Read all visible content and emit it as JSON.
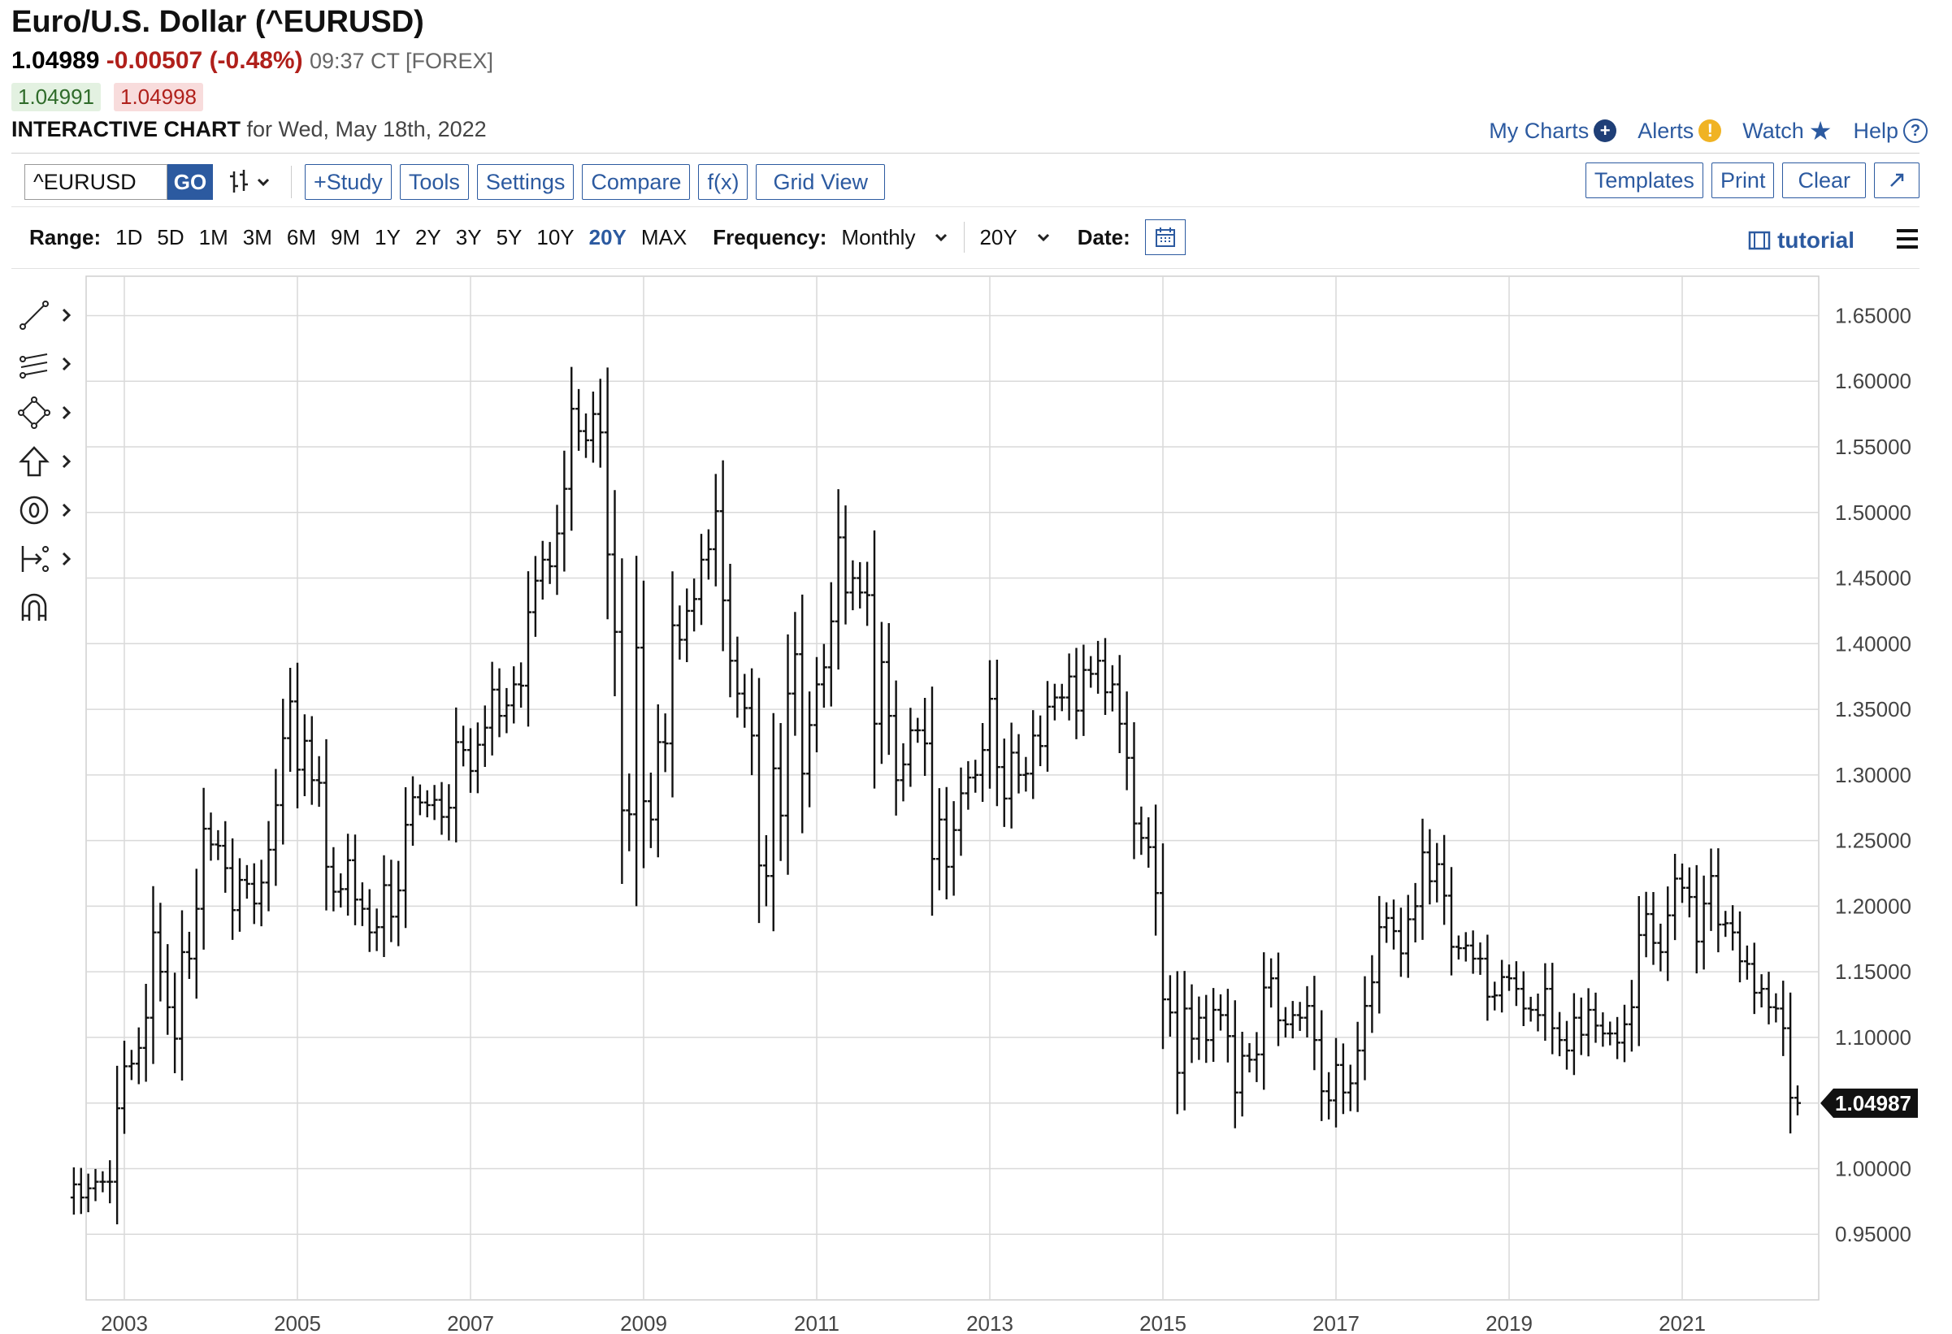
{
  "header": {
    "title": "Euro/U.S. Dollar (^EURUSD)",
    "last": "1.04989",
    "change": "-0.00507 (-0.48%)",
    "time": "09:37 CT [FOREX]",
    "bid": "1.04991",
    "ask": "1.04998",
    "chart_label": "INTERACTIVE CHART",
    "chart_date": "for Wed, May 18th, 2022"
  },
  "top_links": {
    "my_charts": "My Charts",
    "alerts": "Alerts",
    "watch": "Watch",
    "help": "Help"
  },
  "toolbar": {
    "symbol_value": "^EURUSD",
    "go": "GO",
    "study": "+Study",
    "tools": "Tools",
    "settings": "Settings",
    "compare": "Compare",
    "fx": "f(x)",
    "grid_view": "Grid View",
    "templates": "Templates",
    "print": "Print",
    "clear": "Clear"
  },
  "rangebar": {
    "range_label": "Range:",
    "ranges": [
      "1D",
      "5D",
      "1M",
      "3M",
      "6M",
      "9M",
      "1Y",
      "2Y",
      "3Y",
      "5Y",
      "10Y",
      "20Y",
      "MAX"
    ],
    "selected_range": "20Y",
    "frequency_label": "Frequency:",
    "frequency_value": "Monthly",
    "period_value": "20Y",
    "date_label": "Date:",
    "tutorial": "tutorial"
  },
  "colors": {
    "accent": "#2c5aa0",
    "negative": "#b0201b",
    "bar": "#111111",
    "grid": "#d9d9d9"
  },
  "chart_data": {
    "type": "ohlc",
    "frequency": "monthly",
    "current_price_label": "1.04987",
    "x_tick_labels": [
      "2003",
      "2005",
      "2007",
      "2009",
      "2011",
      "2013",
      "2015",
      "2017",
      "2019",
      "2021"
    ],
    "y_tick_labels": [
      "0.95000",
      "1.00000",
      "1.05000",
      "1.10000",
      "1.15000",
      "1.20000",
      "1.25000",
      "1.30000",
      "1.35000",
      "1.40000",
      "1.45000",
      "1.50000",
      "1.55000",
      "1.60000",
      "1.65000"
    ],
    "ylim": [
      0.9,
      1.68
    ],
    "xlim": [
      "2002-06",
      "2022-08"
    ],
    "grid": true,
    "monthly_closes": [
      {
        "date": "2002-06",
        "close": 0.988
      },
      {
        "date": "2002-07",
        "close": 0.978
      },
      {
        "date": "2002-08",
        "close": 0.985
      },
      {
        "date": "2002-09",
        "close": 0.99
      },
      {
        "date": "2002-10",
        "close": 0.99
      },
      {
        "date": "2002-11",
        "close": 0.99
      },
      {
        "date": "2002-12",
        "close": 1.046
      },
      {
        "date": "2003-01",
        "close": 1.078
      },
      {
        "date": "2003-02",
        "close": 1.08
      },
      {
        "date": "2003-03",
        "close": 1.092
      },
      {
        "date": "2003-04",
        "close": 1.115
      },
      {
        "date": "2003-05",
        "close": 1.18
      },
      {
        "date": "2003-06",
        "close": 1.15
      },
      {
        "date": "2003-07",
        "close": 1.123
      },
      {
        "date": "2003-08",
        "close": 1.099
      },
      {
        "date": "2003-09",
        "close": 1.165
      },
      {
        "date": "2003-10",
        "close": 1.16
      },
      {
        "date": "2003-11",
        "close": 1.198
      },
      {
        "date": "2003-12",
        "close": 1.259
      },
      {
        "date": "2004-01",
        "close": 1.247
      },
      {
        "date": "2004-02",
        "close": 1.246
      },
      {
        "date": "2004-03",
        "close": 1.229
      },
      {
        "date": "2004-04",
        "close": 1.197
      },
      {
        "date": "2004-05",
        "close": 1.22
      },
      {
        "date": "2004-06",
        "close": 1.217
      },
      {
        "date": "2004-07",
        "close": 1.202
      },
      {
        "date": "2004-08",
        "close": 1.218
      },
      {
        "date": "2004-09",
        "close": 1.243
      },
      {
        "date": "2004-10",
        "close": 1.277
      },
      {
        "date": "2004-11",
        "close": 1.328
      },
      {
        "date": "2004-12",
        "close": 1.356
      },
      {
        "date": "2005-01",
        "close": 1.304
      },
      {
        "date": "2005-02",
        "close": 1.326
      },
      {
        "date": "2005-03",
        "close": 1.296
      },
      {
        "date": "2005-04",
        "close": 1.294
      },
      {
        "date": "2005-05",
        "close": 1.23
      },
      {
        "date": "2005-06",
        "close": 1.211
      },
      {
        "date": "2005-07",
        "close": 1.213
      },
      {
        "date": "2005-08",
        "close": 1.235
      },
      {
        "date": "2005-09",
        "close": 1.205
      },
      {
        "date": "2005-10",
        "close": 1.198
      },
      {
        "date": "2005-11",
        "close": 1.18
      },
      {
        "date": "2005-12",
        "close": 1.184
      },
      {
        "date": "2006-01",
        "close": 1.216
      },
      {
        "date": "2006-02",
        "close": 1.192
      },
      {
        "date": "2006-03",
        "close": 1.212
      },
      {
        "date": "2006-04",
        "close": 1.262
      },
      {
        "date": "2006-05",
        "close": 1.283
      },
      {
        "date": "2006-06",
        "close": 1.279
      },
      {
        "date": "2006-07",
        "close": 1.277
      },
      {
        "date": "2006-08",
        "close": 1.281
      },
      {
        "date": "2006-09",
        "close": 1.268
      },
      {
        "date": "2006-10",
        "close": 1.275
      },
      {
        "date": "2006-11",
        "close": 1.325
      },
      {
        "date": "2006-12",
        "close": 1.319
      },
      {
        "date": "2007-01",
        "close": 1.303
      },
      {
        "date": "2007-02",
        "close": 1.323
      },
      {
        "date": "2007-03",
        "close": 1.336
      },
      {
        "date": "2007-04",
        "close": 1.365
      },
      {
        "date": "2007-05",
        "close": 1.345
      },
      {
        "date": "2007-06",
        "close": 1.353
      },
      {
        "date": "2007-07",
        "close": 1.369
      },
      {
        "date": "2007-08",
        "close": 1.368
      },
      {
        "date": "2007-09",
        "close": 1.424
      },
      {
        "date": "2007-10",
        "close": 1.448
      },
      {
        "date": "2007-11",
        "close": 1.464
      },
      {
        "date": "2007-12",
        "close": 1.459
      },
      {
        "date": "2008-01",
        "close": 1.484
      },
      {
        "date": "2008-02",
        "close": 1.518
      },
      {
        "date": "2008-03",
        "close": 1.579
      },
      {
        "date": "2008-04",
        "close": 1.562
      },
      {
        "date": "2008-05",
        "close": 1.555
      },
      {
        "date": "2008-06",
        "close": 1.575
      },
      {
        "date": "2008-07",
        "close": 1.561
      },
      {
        "date": "2008-08",
        "close": 1.468
      },
      {
        "date": "2008-09",
        "close": 1.409
      },
      {
        "date": "2008-10",
        "close": 1.273
      },
      {
        "date": "2008-11",
        "close": 1.27
      },
      {
        "date": "2008-12",
        "close": 1.397
      },
      {
        "date": "2009-01",
        "close": 1.28
      },
      {
        "date": "2009-02",
        "close": 1.266
      },
      {
        "date": "2009-03",
        "close": 1.325
      },
      {
        "date": "2009-04",
        "close": 1.324
      },
      {
        "date": "2009-05",
        "close": 1.414
      },
      {
        "date": "2009-06",
        "close": 1.403
      },
      {
        "date": "2009-07",
        "close": 1.425
      },
      {
        "date": "2009-08",
        "close": 1.434
      },
      {
        "date": "2009-09",
        "close": 1.464
      },
      {
        "date": "2009-10",
        "close": 1.472
      },
      {
        "date": "2009-11",
        "close": 1.501
      },
      {
        "date": "2009-12",
        "close": 1.433
      },
      {
        "date": "2010-01",
        "close": 1.387
      },
      {
        "date": "2010-02",
        "close": 1.362
      },
      {
        "date": "2010-03",
        "close": 1.351
      },
      {
        "date": "2010-04",
        "close": 1.33
      },
      {
        "date": "2010-05",
        "close": 1.231
      },
      {
        "date": "2010-06",
        "close": 1.223
      },
      {
        "date": "2010-07",
        "close": 1.305
      },
      {
        "date": "2010-08",
        "close": 1.269
      },
      {
        "date": "2010-09",
        "close": 1.362
      },
      {
        "date": "2010-10",
        "close": 1.392
      },
      {
        "date": "2010-11",
        "close": 1.301
      },
      {
        "date": "2010-12",
        "close": 1.338
      },
      {
        "date": "2011-01",
        "close": 1.369
      },
      {
        "date": "2011-02",
        "close": 1.382
      },
      {
        "date": "2011-03",
        "close": 1.417
      },
      {
        "date": "2011-04",
        "close": 1.481
      },
      {
        "date": "2011-05",
        "close": 1.439
      },
      {
        "date": "2011-06",
        "close": 1.45
      },
      {
        "date": "2011-07",
        "close": 1.439
      },
      {
        "date": "2011-08",
        "close": 1.437
      },
      {
        "date": "2011-09",
        "close": 1.339
      },
      {
        "date": "2011-10",
        "close": 1.386
      },
      {
        "date": "2011-11",
        "close": 1.345
      },
      {
        "date": "2011-12",
        "close": 1.296
      },
      {
        "date": "2012-01",
        "close": 1.308
      },
      {
        "date": "2012-02",
        "close": 1.334
      },
      {
        "date": "2012-03",
        "close": 1.334
      },
      {
        "date": "2012-04",
        "close": 1.324
      },
      {
        "date": "2012-05",
        "close": 1.236
      },
      {
        "date": "2012-06",
        "close": 1.266
      },
      {
        "date": "2012-07",
        "close": 1.23
      },
      {
        "date": "2012-08",
        "close": 1.258
      },
      {
        "date": "2012-09",
        "close": 1.286
      },
      {
        "date": "2012-10",
        "close": 1.298
      },
      {
        "date": "2012-11",
        "close": 1.3
      },
      {
        "date": "2012-12",
        "close": 1.319
      },
      {
        "date": "2013-01",
        "close": 1.358
      },
      {
        "date": "2013-02",
        "close": 1.306
      },
      {
        "date": "2013-03",
        "close": 1.282
      },
      {
        "date": "2013-04",
        "close": 1.317
      },
      {
        "date": "2013-05",
        "close": 1.3
      },
      {
        "date": "2013-06",
        "close": 1.301
      },
      {
        "date": "2013-07",
        "close": 1.33
      },
      {
        "date": "2013-08",
        "close": 1.322
      },
      {
        "date": "2013-09",
        "close": 1.352
      },
      {
        "date": "2013-10",
        "close": 1.359
      },
      {
        "date": "2013-11",
        "close": 1.359
      },
      {
        "date": "2013-12",
        "close": 1.375
      },
      {
        "date": "2014-01",
        "close": 1.349
      },
      {
        "date": "2014-02",
        "close": 1.38
      },
      {
        "date": "2014-03",
        "close": 1.377
      },
      {
        "date": "2014-04",
        "close": 1.387
      },
      {
        "date": "2014-05",
        "close": 1.363
      },
      {
        "date": "2014-06",
        "close": 1.369
      },
      {
        "date": "2014-07",
        "close": 1.339
      },
      {
        "date": "2014-08",
        "close": 1.313
      },
      {
        "date": "2014-09",
        "close": 1.263
      },
      {
        "date": "2014-10",
        "close": 1.252
      },
      {
        "date": "2014-11",
        "close": 1.245
      },
      {
        "date": "2014-12",
        "close": 1.21
      },
      {
        "date": "2015-01",
        "close": 1.129
      },
      {
        "date": "2015-02",
        "close": 1.119
      },
      {
        "date": "2015-03",
        "close": 1.073
      },
      {
        "date": "2015-04",
        "close": 1.122
      },
      {
        "date": "2015-05",
        "close": 1.099
      },
      {
        "date": "2015-06",
        "close": 1.115
      },
      {
        "date": "2015-07",
        "close": 1.098
      },
      {
        "date": "2015-08",
        "close": 1.121
      },
      {
        "date": "2015-09",
        "close": 1.117
      },
      {
        "date": "2015-10",
        "close": 1.101
      },
      {
        "date": "2015-11",
        "close": 1.058
      },
      {
        "date": "2015-12",
        "close": 1.086
      },
      {
        "date": "2016-01",
        "close": 1.083
      },
      {
        "date": "2016-02",
        "close": 1.087
      },
      {
        "date": "2016-03",
        "close": 1.138
      },
      {
        "date": "2016-04",
        "close": 1.145
      },
      {
        "date": "2016-05",
        "close": 1.113
      },
      {
        "date": "2016-06",
        "close": 1.11
      },
      {
        "date": "2016-07",
        "close": 1.117
      },
      {
        "date": "2016-08",
        "close": 1.115
      },
      {
        "date": "2016-09",
        "close": 1.124
      },
      {
        "date": "2016-10",
        "close": 1.098
      },
      {
        "date": "2016-11",
        "close": 1.059
      },
      {
        "date": "2016-12",
        "close": 1.052
      },
      {
        "date": "2017-01",
        "close": 1.079
      },
      {
        "date": "2017-02",
        "close": 1.058
      },
      {
        "date": "2017-03",
        "close": 1.065
      },
      {
        "date": "2017-04",
        "close": 1.09
      },
      {
        "date": "2017-05",
        "close": 1.124
      },
      {
        "date": "2017-06",
        "close": 1.142
      },
      {
        "date": "2017-07",
        "close": 1.184
      },
      {
        "date": "2017-08",
        "close": 1.191
      },
      {
        "date": "2017-09",
        "close": 1.181
      },
      {
        "date": "2017-10",
        "close": 1.164
      },
      {
        "date": "2017-11",
        "close": 1.19
      },
      {
        "date": "2017-12",
        "close": 1.2
      },
      {
        "date": "2018-01",
        "close": 1.241
      },
      {
        "date": "2018-02",
        "close": 1.219
      },
      {
        "date": "2018-03",
        "close": 1.232
      },
      {
        "date": "2018-04",
        "close": 1.208
      },
      {
        "date": "2018-05",
        "close": 1.169
      },
      {
        "date": "2018-06",
        "close": 1.168
      },
      {
        "date": "2018-07",
        "close": 1.17
      },
      {
        "date": "2018-08",
        "close": 1.16
      },
      {
        "date": "2018-09",
        "close": 1.16
      },
      {
        "date": "2018-10",
        "close": 1.131
      },
      {
        "date": "2018-11",
        "close": 1.132
      },
      {
        "date": "2018-12",
        "close": 1.146
      },
      {
        "date": "2019-01",
        "close": 1.145
      },
      {
        "date": "2019-02",
        "close": 1.137
      },
      {
        "date": "2019-03",
        "close": 1.122
      },
      {
        "date": "2019-04",
        "close": 1.121
      },
      {
        "date": "2019-05",
        "close": 1.117
      },
      {
        "date": "2019-06",
        "close": 1.137
      },
      {
        "date": "2019-07",
        "close": 1.107
      },
      {
        "date": "2019-08",
        "close": 1.098
      },
      {
        "date": "2019-09",
        "close": 1.09
      },
      {
        "date": "2019-10",
        "close": 1.115
      },
      {
        "date": "2019-11",
        "close": 1.102
      },
      {
        "date": "2019-12",
        "close": 1.121
      },
      {
        "date": "2020-01",
        "close": 1.109
      },
      {
        "date": "2020-02",
        "close": 1.103
      },
      {
        "date": "2020-03",
        "close": 1.103
      },
      {
        "date": "2020-04",
        "close": 1.096
      },
      {
        "date": "2020-05",
        "close": 1.11
      },
      {
        "date": "2020-06",
        "close": 1.123
      },
      {
        "date": "2020-07",
        "close": 1.178
      },
      {
        "date": "2020-08",
        "close": 1.194
      },
      {
        "date": "2020-09",
        "close": 1.172
      },
      {
        "date": "2020-10",
        "close": 1.165
      },
      {
        "date": "2020-11",
        "close": 1.193
      },
      {
        "date": "2020-12",
        "close": 1.221
      },
      {
        "date": "2021-01",
        "close": 1.214
      },
      {
        "date": "2021-02",
        "close": 1.207
      },
      {
        "date": "2021-03",
        "close": 1.173
      },
      {
        "date": "2021-04",
        "close": 1.202
      },
      {
        "date": "2021-05",
        "close": 1.223
      },
      {
        "date": "2021-06",
        "close": 1.186
      },
      {
        "date": "2021-07",
        "close": 1.187
      },
      {
        "date": "2021-08",
        "close": 1.18
      },
      {
        "date": "2021-09",
        "close": 1.158
      },
      {
        "date": "2021-10",
        "close": 1.156
      },
      {
        "date": "2021-11",
        "close": 1.134
      },
      {
        "date": "2021-12",
        "close": 1.137
      },
      {
        "date": "2022-01",
        "close": 1.123
      },
      {
        "date": "2022-02",
        "close": 1.122
      },
      {
        "date": "2022-03",
        "close": 1.107
      },
      {
        "date": "2022-04",
        "close": 1.054
      },
      {
        "date": "2022-05",
        "close": 1.05
      }
    ]
  }
}
